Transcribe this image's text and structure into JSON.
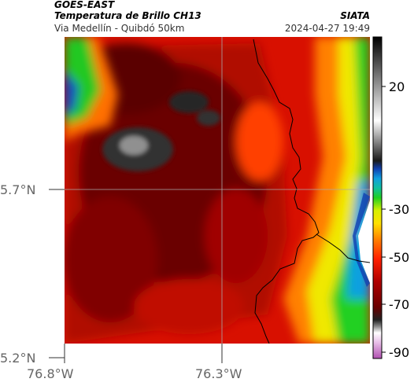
{
  "header": {
    "satellite": "GOES-EAST",
    "product": "Temperatura de Brillo CH13",
    "route": "Via Medellín - Quibdó 50km",
    "agency": "SIATA",
    "datetime": "2024-04-27 19:49"
  },
  "map": {
    "lat_ticks": [
      "5.7°N",
      "5.2°N"
    ],
    "lon_ticks": [
      "76.8°W",
      "76.3°W"
    ],
    "lat_range": [
      5.2,
      6.05
    ],
    "lon_range": [
      -76.8,
      -76.1
    ],
    "gridlines": true
  },
  "colorbar": {
    "ticks": [
      "20",
      "-30",
      "-50",
      "-70",
      "-90"
    ],
    "tick_values": [
      20,
      -30,
      -50,
      -70,
      -90
    ],
    "range": [
      -95,
      45
    ],
    "colors": {
      "magenta": "#c060c0",
      "black": "#111111",
      "darkred": "#6a0000",
      "red": "#e01000",
      "orange": "#ff7a00",
      "yellow": "#f4f000",
      "green": "#18d018",
      "cyan": "#18b4e0",
      "blue": "#1040c0",
      "white": "#ffffff"
    }
  }
}
